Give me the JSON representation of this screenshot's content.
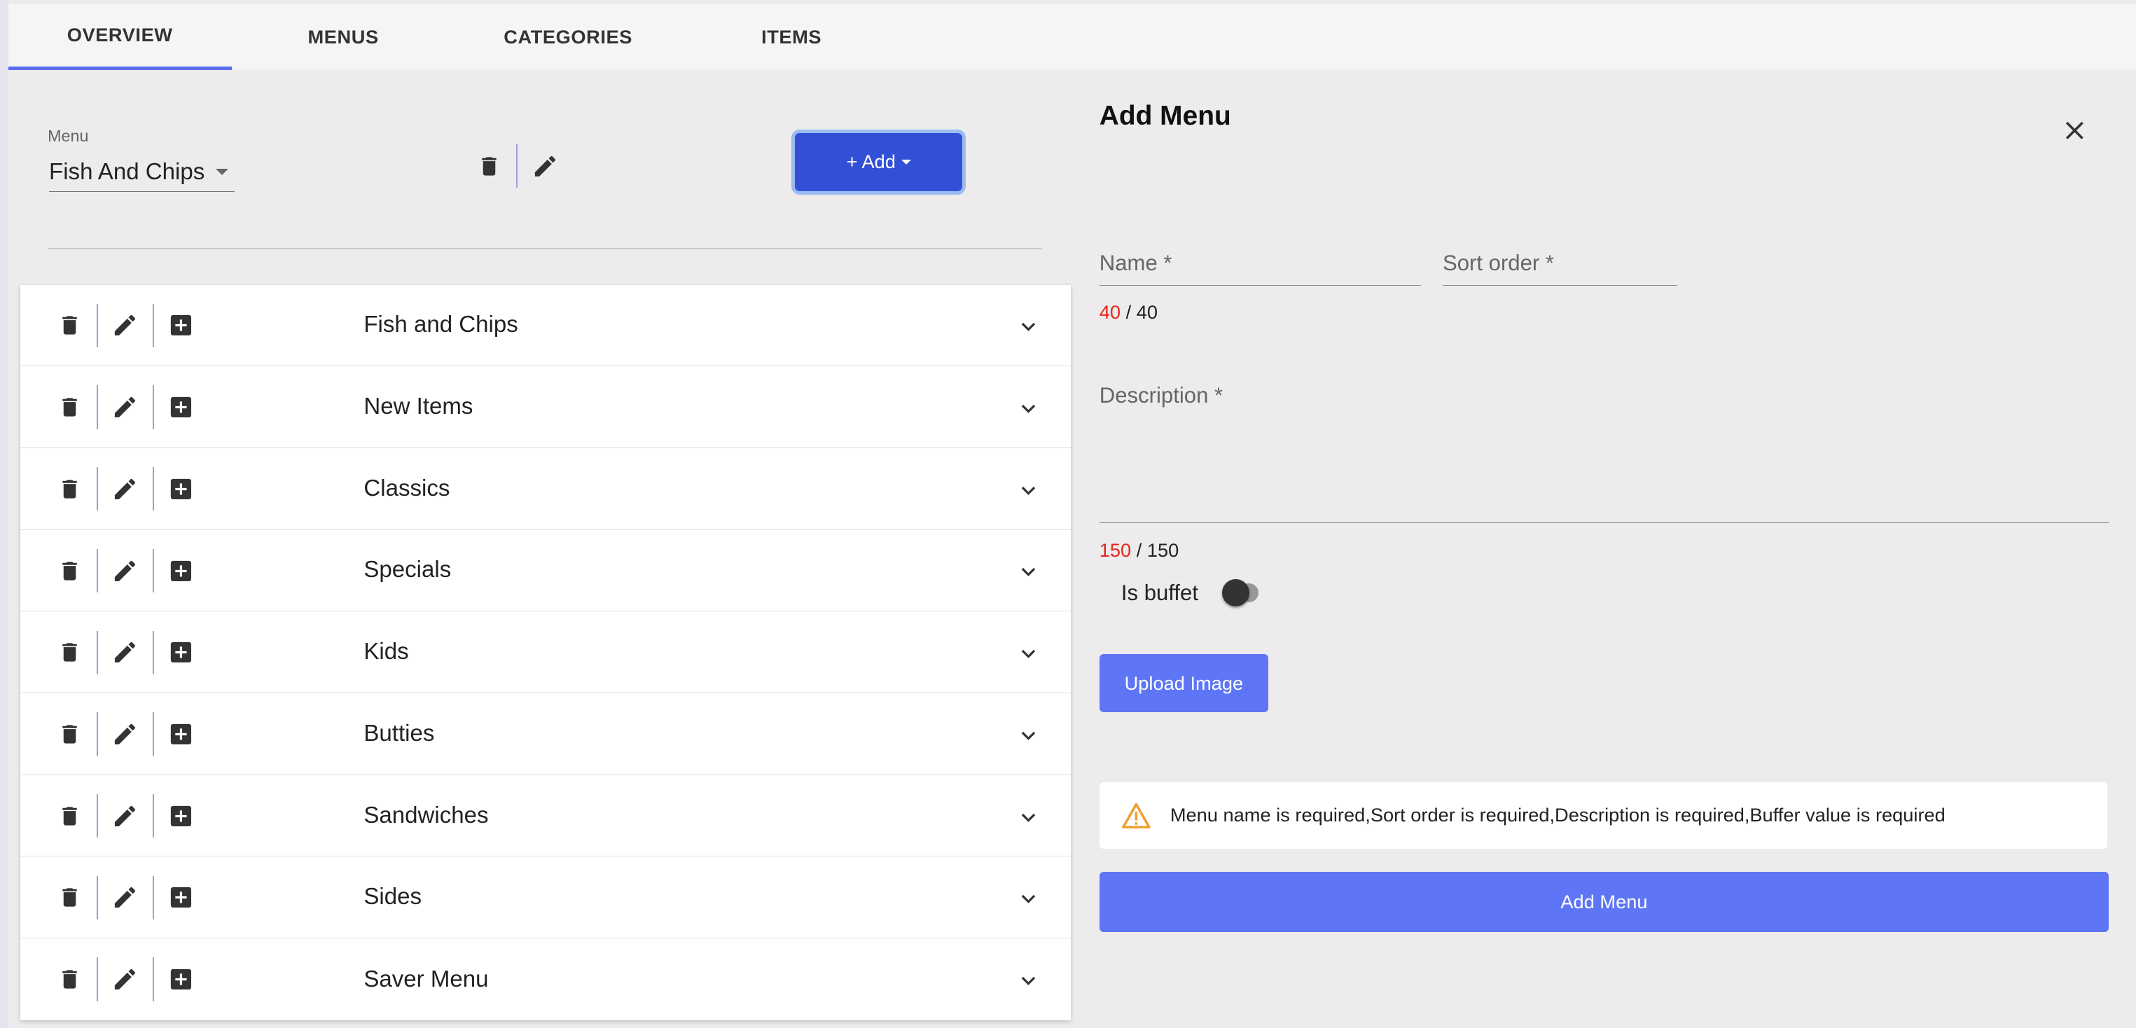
{
  "tabs": [
    {
      "label": "OVERVIEW",
      "active": true
    },
    {
      "label": "MENUS"
    },
    {
      "label": "CATEGORIES"
    },
    {
      "label": "ITEMS"
    }
  ],
  "menu_select": {
    "label": "Menu",
    "value": "Fish And Chips"
  },
  "add_button": {
    "label": "+ Add"
  },
  "categories": [
    {
      "name": "Fish and Chips"
    },
    {
      "name": "New Items"
    },
    {
      "name": "Classics"
    },
    {
      "name": "Specials"
    },
    {
      "name": "Kids"
    },
    {
      "name": "Butties"
    },
    {
      "name": "Sandwiches"
    },
    {
      "name": "Sides"
    },
    {
      "name": "Saver Menu"
    }
  ],
  "panel": {
    "title": "Add Menu",
    "name_label": "Name *",
    "sort_label": "Sort order *",
    "name_count": {
      "remaining": "40",
      "max": "/ 40"
    },
    "desc_label": "Description *",
    "desc_count": {
      "remaining": "150",
      "max": "/ 150"
    },
    "buffet_label": "Is buffet",
    "buffet_on": false,
    "upload_label": "Upload Image",
    "alert": "Menu name is required,Sort order is required,Description is required,Buffer value is required",
    "submit_label": "Add Menu"
  },
  "colors": {
    "accent": "#5e76f5",
    "add_button": "#3250d6",
    "error": "#e5261c",
    "warning": "#f0a030"
  }
}
